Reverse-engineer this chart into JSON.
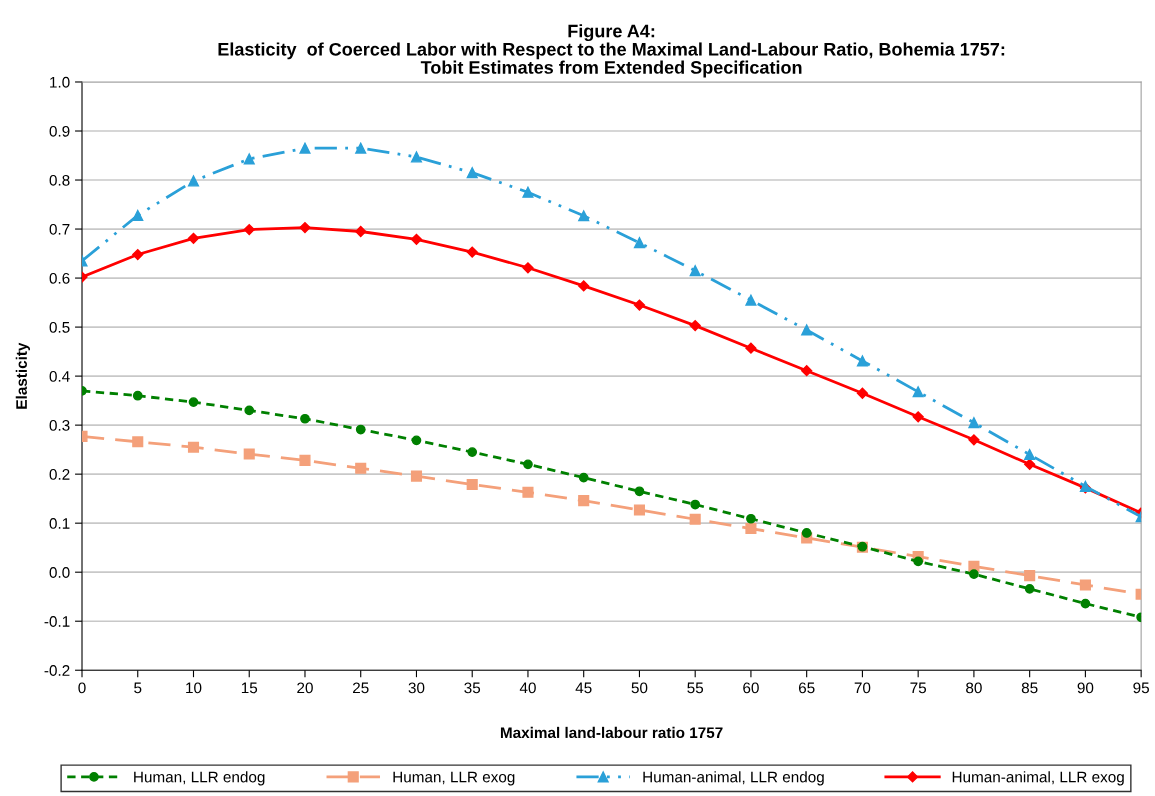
{
  "chart_data": {
    "type": "line",
    "title": "Figure A4:\nElasticity  of Coerced Labor with Respect to the Maximal Land-Labour Ratio, Bohemia 1757:\nTobit Estimates from Extended Specification",
    "xlabel": "Maximal land-labour ratio 1757",
    "ylabel": "Elasticity",
    "categories": [
      "0",
      "5",
      "10",
      "15",
      "20",
      "25",
      "30",
      "35",
      "40",
      "45",
      "50",
      "55",
      "60",
      "65",
      "70",
      "75",
      "80",
      "85",
      "90",
      "95"
    ],
    "ylim": [
      -0.2,
      1.0
    ],
    "yticks": [
      {
        "value": -0.2,
        "label": "-0.2"
      },
      {
        "value": -0.1,
        "label": "-0.1"
      },
      {
        "value": 0,
        "label": "0.0"
      },
      {
        "value": 0.1,
        "label": "0.1"
      },
      {
        "value": 0.2,
        "label": "0.2"
      },
      {
        "value": 0.3,
        "label": "0.3"
      },
      {
        "value": 0.4,
        "label": "0.4"
      },
      {
        "value": 0.5,
        "label": "0.5"
      },
      {
        "value": 0.6,
        "label": "0.6"
      },
      {
        "value": 0.7,
        "label": "0.7"
      },
      {
        "value": 0.8,
        "label": "0.8"
      },
      {
        "value": 0.9,
        "label": "0.9"
      },
      {
        "value": 1.0,
        "label": "1.0"
      }
    ],
    "grid": "y",
    "legend": "bottom",
    "series": [
      {
        "name": "Human, LLR endog",
        "color": "#008000",
        "marker": "circle",
        "line_style": "dashed",
        "values": [
          0.37,
          0.36,
          0.347,
          0.33,
          0.313,
          0.291,
          0.269,
          0.245,
          0.22,
          0.193,
          0.165,
          0.138,
          0.109,
          0.08,
          0.052,
          0.022,
          -0.004,
          -0.034,
          -0.064,
          -0.092
        ]
      },
      {
        "name": "Human, LLR exog",
        "color": "#f4a07a",
        "marker": "square",
        "line_style": "longdash",
        "values": [
          0.277,
          0.266,
          0.255,
          0.241,
          0.228,
          0.212,
          0.196,
          0.179,
          0.163,
          0.146,
          0.127,
          0.108,
          0.089,
          0.07,
          0.051,
          0.032,
          0.012,
          -0.007,
          -0.026,
          -0.045
        ]
      },
      {
        "name": "Human-animal, LLR endog",
        "color": "#2aa0d8",
        "marker": "triangle",
        "line_style": "dashdotdot",
        "values": [
          0.635,
          0.728,
          0.798,
          0.843,
          0.865,
          0.865,
          0.847,
          0.815,
          0.775,
          0.727,
          0.672,
          0.615,
          0.555,
          0.494,
          0.431,
          0.368,
          0.305,
          0.24,
          0.175,
          0.113
        ]
      },
      {
        "name": "Human-animal, LLR exog",
        "color": "#ff0000",
        "marker": "diamond",
        "line_style": "solid",
        "values": [
          0.602,
          0.648,
          0.681,
          0.699,
          0.703,
          0.695,
          0.679,
          0.653,
          0.621,
          0.584,
          0.545,
          0.503,
          0.457,
          0.411,
          0.365,
          0.317,
          0.27,
          0.22,
          0.172,
          0.121
        ]
      }
    ]
  }
}
